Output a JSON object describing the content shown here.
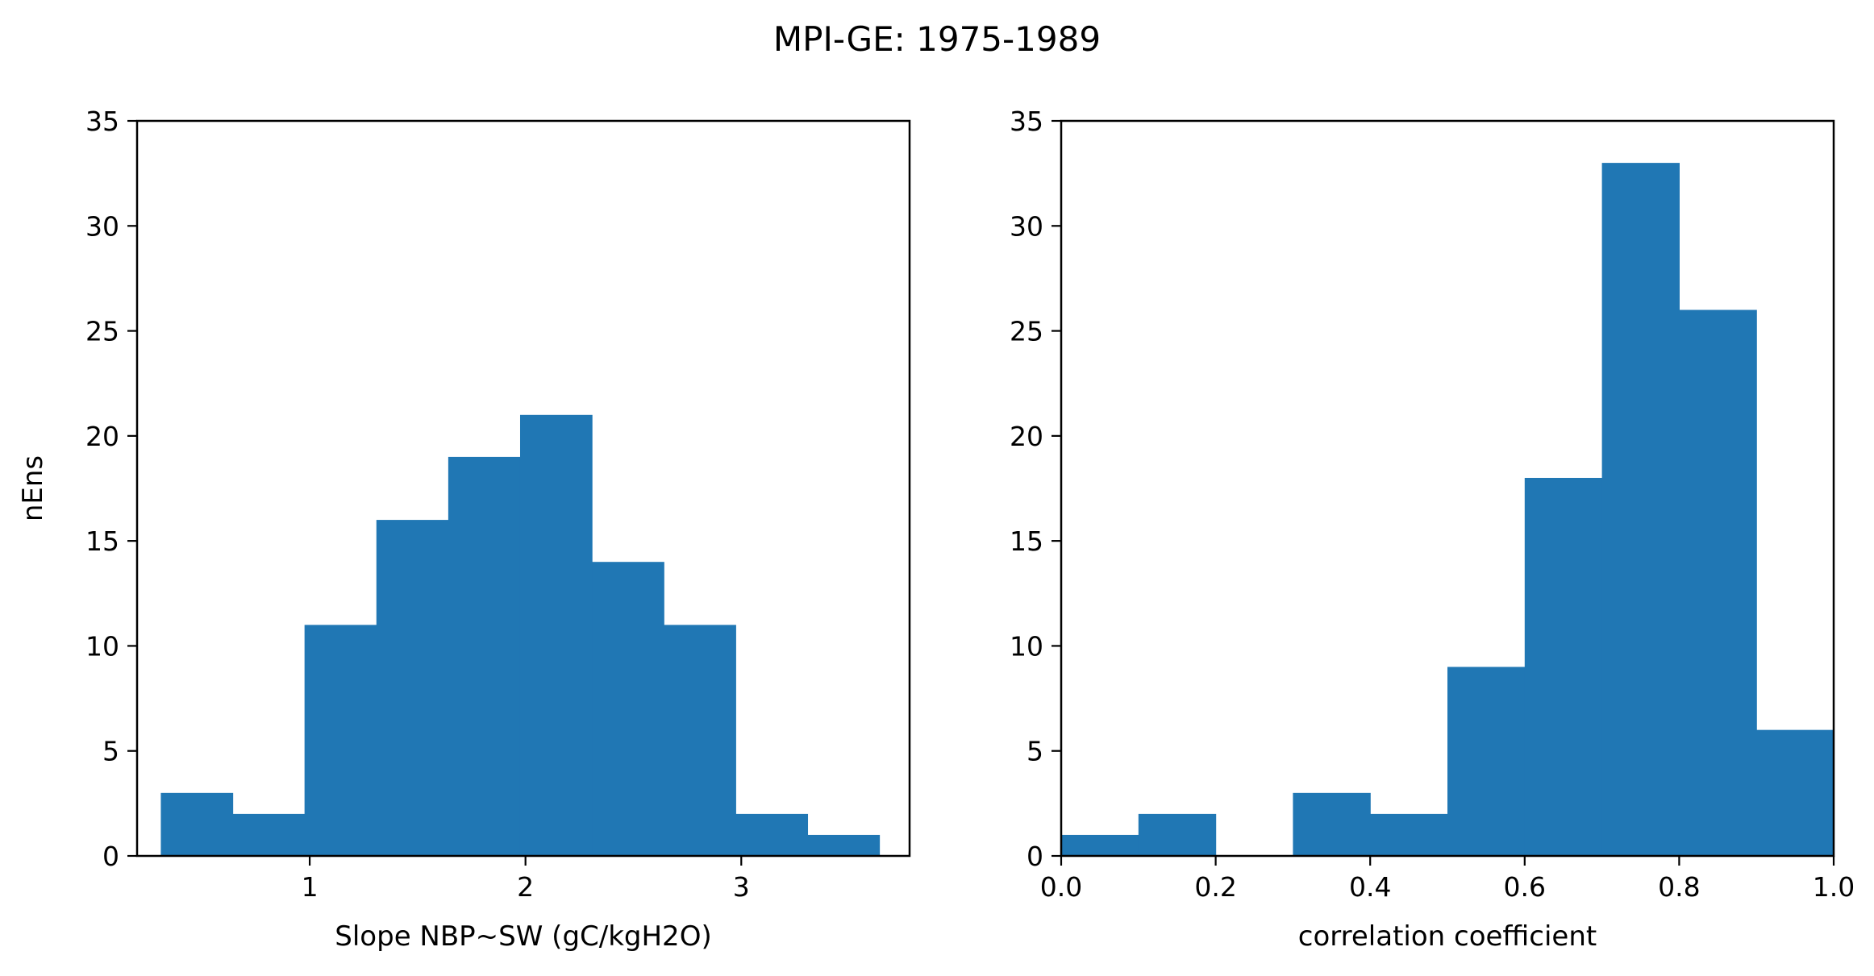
{
  "figure": {
    "suptitle": "MPI-GE: 1975-1989"
  },
  "colors": {
    "bar": "#2077b4",
    "axis": "#000000"
  },
  "chart_data": [
    {
      "type": "bar",
      "title": "",
      "xlabel": "Slope NBP~SW (gC/kgH2O)",
      "ylabel": "nEns",
      "xlim": [
        0.2,
        3.78
      ],
      "ylim": [
        0,
        35
      ],
      "xticks": [
        1,
        2,
        3
      ],
      "yticks": [
        0,
        5,
        10,
        15,
        20,
        25,
        30,
        35
      ],
      "bin_edges": [
        0.31,
        0.643,
        0.976,
        1.309,
        1.642,
        1.975,
        2.308,
        2.641,
        2.974,
        3.307,
        3.64
      ],
      "values": [
        3,
        2,
        11,
        16,
        19,
        21,
        14,
        11,
        2,
        1
      ],
      "grid": false
    },
    {
      "type": "bar",
      "title": "",
      "xlabel": "correlation coefficient",
      "ylabel": "",
      "xlim": [
        0.0,
        1.0
      ],
      "ylim": [
        0,
        35
      ],
      "xticks": [
        0.0,
        0.2,
        0.4,
        0.6,
        0.8,
        1.0
      ],
      "xtick_labels": [
        "0.0",
        "0.2",
        "0.4",
        "0.6",
        "0.8",
        "1.0"
      ],
      "yticks": [
        0,
        5,
        10,
        15,
        20,
        25,
        30,
        35
      ],
      "bin_edges": [
        0.0,
        0.1,
        0.2,
        0.3,
        0.4,
        0.5,
        0.6,
        0.7,
        0.8,
        0.9,
        1.0
      ],
      "values": [
        1,
        2,
        0,
        3,
        2,
        9,
        18,
        33,
        26,
        6
      ],
      "grid": false
    }
  ]
}
